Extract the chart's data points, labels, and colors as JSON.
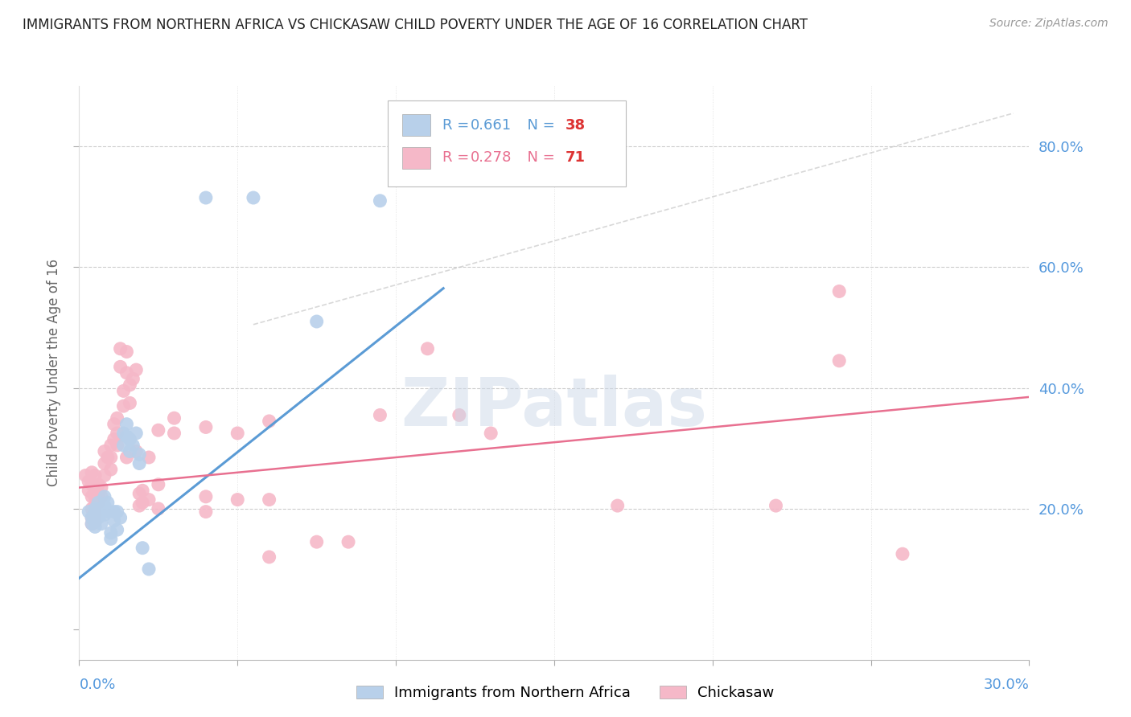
{
  "title": "IMMIGRANTS FROM NORTHERN AFRICA VS CHICKASAW CHILD POVERTY UNDER THE AGE OF 16 CORRELATION CHART",
  "source": "Source: ZipAtlas.com",
  "ylabel": "Child Poverty Under the Age of 16",
  "blue_color": "#b8d0ea",
  "pink_color": "#f5b8c8",
  "blue_line_color": "#5b9bd5",
  "pink_line_color": "#e87090",
  "diag_line_color": "#c8c8c8",
  "axis_color": "#5599dd",
  "watermark": "ZIPatlas",
  "xlim": [
    0.0,
    0.3
  ],
  "ylim": [
    -0.05,
    0.9
  ],
  "yticks": [
    0.0,
    0.2,
    0.4,
    0.6,
    0.8
  ],
  "ytick_labels": [
    "",
    "20.0%",
    "40.0%",
    "60.0%",
    "80.0%"
  ],
  "blue_scatter": [
    [
      0.003,
      0.195
    ],
    [
      0.004,
      0.185
    ],
    [
      0.004,
      0.175
    ],
    [
      0.005,
      0.2
    ],
    [
      0.005,
      0.19
    ],
    [
      0.005,
      0.18
    ],
    [
      0.005,
      0.17
    ],
    [
      0.006,
      0.21
    ],
    [
      0.006,
      0.185
    ],
    [
      0.007,
      0.2
    ],
    [
      0.007,
      0.175
    ],
    [
      0.008,
      0.22
    ],
    [
      0.008,
      0.205
    ],
    [
      0.008,
      0.19
    ],
    [
      0.009,
      0.21
    ],
    [
      0.009,
      0.195
    ],
    [
      0.01,
      0.16
    ],
    [
      0.01,
      0.15
    ],
    [
      0.011,
      0.195
    ],
    [
      0.011,
      0.18
    ],
    [
      0.012,
      0.195
    ],
    [
      0.012,
      0.165
    ],
    [
      0.013,
      0.185
    ],
    [
      0.014,
      0.325
    ],
    [
      0.014,
      0.305
    ],
    [
      0.015,
      0.34
    ],
    [
      0.015,
      0.32
    ],
    [
      0.016,
      0.315
    ],
    [
      0.016,
      0.295
    ],
    [
      0.017,
      0.305
    ],
    [
      0.018,
      0.325
    ],
    [
      0.019,
      0.29
    ],
    [
      0.019,
      0.275
    ],
    [
      0.02,
      0.135
    ],
    [
      0.022,
      0.1
    ],
    [
      0.04,
      0.715
    ],
    [
      0.055,
      0.715
    ],
    [
      0.075,
      0.51
    ],
    [
      0.095,
      0.71
    ]
  ],
  "pink_scatter": [
    [
      0.002,
      0.255
    ],
    [
      0.003,
      0.245
    ],
    [
      0.003,
      0.23
    ],
    [
      0.004,
      0.26
    ],
    [
      0.004,
      0.24
    ],
    [
      0.004,
      0.22
    ],
    [
      0.004,
      0.2
    ],
    [
      0.004,
      0.185
    ],
    [
      0.004,
      0.175
    ],
    [
      0.005,
      0.255
    ],
    [
      0.005,
      0.235
    ],
    [
      0.005,
      0.22
    ],
    [
      0.005,
      0.205
    ],
    [
      0.005,
      0.19
    ],
    [
      0.005,
      0.178
    ],
    [
      0.006,
      0.24
    ],
    [
      0.006,
      0.225
    ],
    [
      0.006,
      0.21
    ],
    [
      0.007,
      0.235
    ],
    [
      0.007,
      0.22
    ],
    [
      0.008,
      0.295
    ],
    [
      0.008,
      0.275
    ],
    [
      0.008,
      0.255
    ],
    [
      0.009,
      0.285
    ],
    [
      0.01,
      0.305
    ],
    [
      0.01,
      0.285
    ],
    [
      0.01,
      0.265
    ],
    [
      0.011,
      0.34
    ],
    [
      0.011,
      0.315
    ],
    [
      0.012,
      0.35
    ],
    [
      0.012,
      0.325
    ],
    [
      0.012,
      0.305
    ],
    [
      0.013,
      0.465
    ],
    [
      0.013,
      0.435
    ],
    [
      0.014,
      0.395
    ],
    [
      0.014,
      0.37
    ],
    [
      0.015,
      0.46
    ],
    [
      0.015,
      0.425
    ],
    [
      0.015,
      0.285
    ],
    [
      0.016,
      0.405
    ],
    [
      0.016,
      0.375
    ],
    [
      0.017,
      0.415
    ],
    [
      0.018,
      0.43
    ],
    [
      0.018,
      0.295
    ],
    [
      0.019,
      0.225
    ],
    [
      0.019,
      0.205
    ],
    [
      0.02,
      0.23
    ],
    [
      0.02,
      0.21
    ],
    [
      0.022,
      0.285
    ],
    [
      0.022,
      0.215
    ],
    [
      0.025,
      0.33
    ],
    [
      0.025,
      0.24
    ],
    [
      0.025,
      0.2
    ],
    [
      0.03,
      0.35
    ],
    [
      0.03,
      0.325
    ],
    [
      0.04,
      0.335
    ],
    [
      0.04,
      0.22
    ],
    [
      0.04,
      0.195
    ],
    [
      0.05,
      0.325
    ],
    [
      0.05,
      0.215
    ],
    [
      0.06,
      0.345
    ],
    [
      0.06,
      0.215
    ],
    [
      0.06,
      0.12
    ],
    [
      0.075,
      0.145
    ],
    [
      0.085,
      0.145
    ],
    [
      0.095,
      0.355
    ],
    [
      0.11,
      0.465
    ],
    [
      0.12,
      0.355
    ],
    [
      0.13,
      0.325
    ],
    [
      0.17,
      0.205
    ],
    [
      0.22,
      0.205
    ],
    [
      0.24,
      0.56
    ],
    [
      0.24,
      0.445
    ],
    [
      0.26,
      0.125
    ]
  ],
  "blue_line": {
    "x0": 0.0,
    "x1": 0.115,
    "y0": 0.085,
    "y1": 0.565
  },
  "pink_line": {
    "x0": 0.0,
    "x1": 0.3,
    "y0": 0.235,
    "y1": 0.385
  },
  "diag_line": {
    "x0": 0.055,
    "x1": 0.295,
    "y0": 0.505,
    "y1": 0.855
  }
}
